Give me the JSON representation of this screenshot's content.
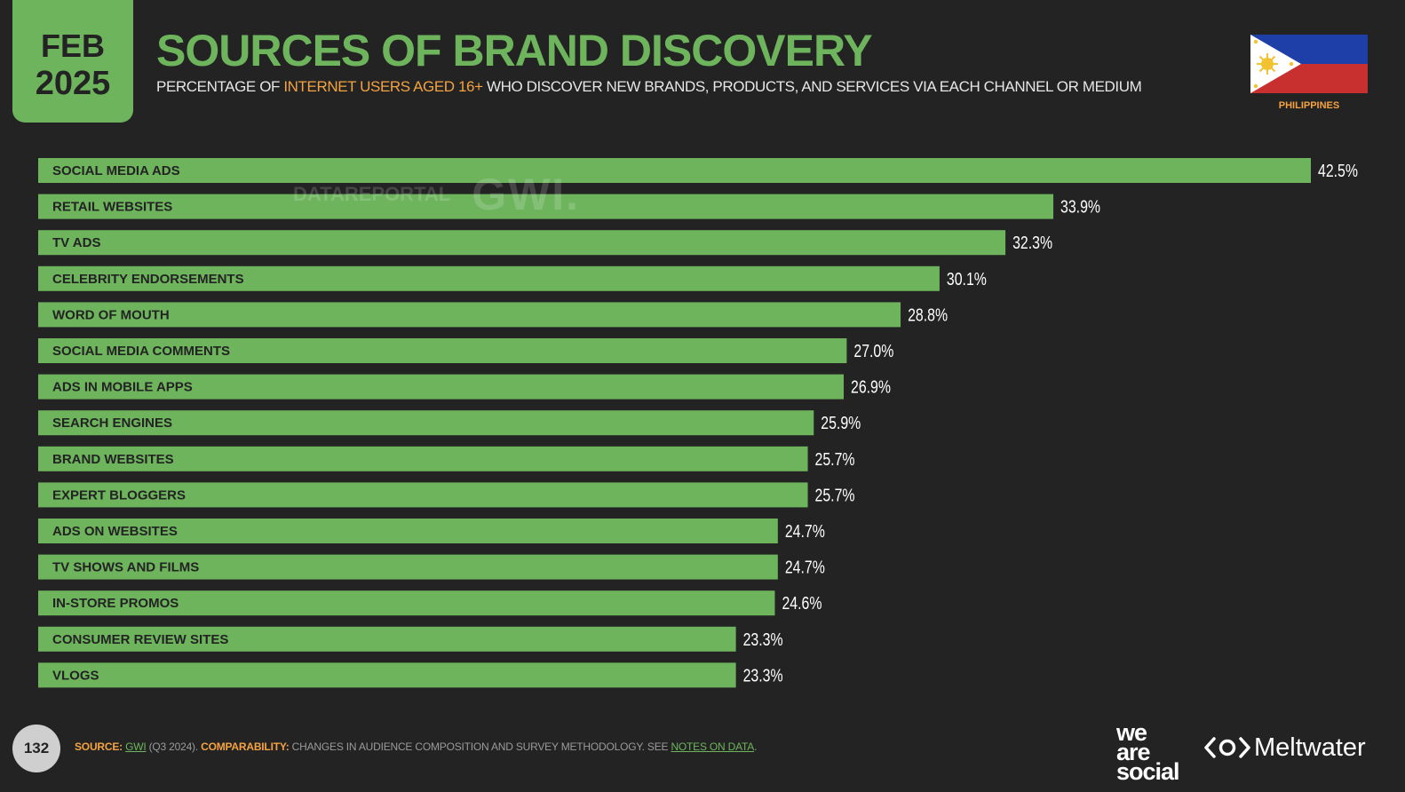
{
  "badge": {
    "month": "FEB",
    "year": "2025"
  },
  "header": {
    "title": "SOURCES OF BRAND DISCOVERY",
    "subtitle_pre": "PERCENTAGE OF ",
    "subtitle_highlight": "INTERNET USERS AGED 16+",
    "subtitle_post": " WHO DISCOVER NEW BRANDS, PRODUCTS, AND SERVICES VIA EACH CHANNEL OR MEDIUM",
    "country": "PHILIPPINES"
  },
  "watermark": {
    "datareportal": "DATAREPORTAL",
    "gwi": "GWI."
  },
  "colors": {
    "bar": "#6db45d",
    "background": "#232323",
    "highlight": "#f4a340",
    "label_text": "#232323",
    "value_text": "#ffffff"
  },
  "chart_data": {
    "type": "bar",
    "orientation": "horizontal",
    "categories": [
      "SOCIAL MEDIA ADS",
      "RETAIL WEBSITES",
      "TV ADS",
      "CELEBRITY ENDORSEMENTS",
      "WORD OF MOUTH",
      "SOCIAL MEDIA COMMENTS",
      "ADS IN MOBILE APPS",
      "SEARCH ENGINES",
      "BRAND WEBSITES",
      "EXPERT BLOGGERS",
      "ADS ON WEBSITES",
      "TV SHOWS AND FILMS",
      "IN-STORE PROMOS",
      "CONSUMER REVIEW SITES",
      "VLOGS"
    ],
    "values": [
      42.5,
      33.9,
      32.3,
      30.1,
      28.8,
      27.0,
      26.9,
      25.9,
      25.7,
      25.7,
      24.7,
      24.7,
      24.6,
      23.3,
      23.3
    ],
    "value_labels": [
      "42.5%",
      "33.9%",
      "32.3%",
      "30.1%",
      "28.8%",
      "27.0%",
      "26.9%",
      "25.9%",
      "25.7%",
      "25.7%",
      "24.7%",
      "24.7%",
      "24.6%",
      "23.3%",
      "23.3%"
    ],
    "xlim": [
      0,
      42.5
    ],
    "grid": false,
    "legend": "none"
  },
  "footer": {
    "page_number": "132",
    "source_label": "SOURCE:",
    "source_link": "GWI",
    "source_detail": " (Q3 2024). ",
    "comparability_label": "COMPARABILITY:",
    "comparability_text": " CHANGES IN AUDIENCE COMPOSITION AND SURVEY METHODOLOGY. SEE ",
    "notes_link": "NOTES ON DATA",
    "notes_end": ".",
    "logo_was_1": "we",
    "logo_was_2": "are",
    "logo_was_3": "social",
    "logo_meltwater": "Meltwater"
  }
}
